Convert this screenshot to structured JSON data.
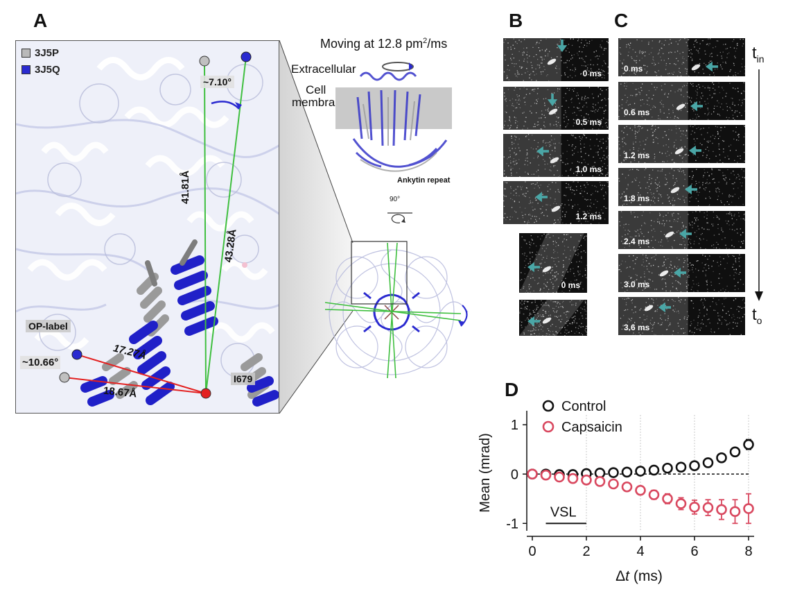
{
  "panels": {
    "a_letter": "A",
    "b_letter": "B",
    "c_letter": "C",
    "d_letter": "D"
  },
  "panel_a": {
    "legend": [
      {
        "label": "3J5P",
        "color": "#b9b9b9"
      },
      {
        "label": "3J5Q",
        "color": "#2a2ad0"
      }
    ],
    "angle_top": "~7.10°",
    "angle_left": "~10.66°",
    "dist_1": "41.81Å",
    "dist_2": "43.28Å",
    "dist_3": "17.27Å",
    "dist_4": "18.67Å",
    "op_label": "OP-label",
    "residue": "I679"
  },
  "structure": {
    "moving_prefix": "Moving at 12.8 pm",
    "moving_sup": "2",
    "moving_suffix": "/ms",
    "extracellular": "Extracellular",
    "cell": "Cell",
    "membrane": "membrane",
    "ankyrin": "Ankytin repeat",
    "rotation": "90°"
  },
  "panel_b": {
    "frames": [
      "0 ms",
      "0.5 ms",
      "1.0 ms",
      "1.2 ms"
    ],
    "extra_frames": [
      "0 ms",
      ""
    ]
  },
  "panel_c": {
    "frames": [
      "0 ms",
      "0.6 ms",
      "1.2 ms",
      "1.8 ms",
      "2.4 ms",
      "3.0 ms",
      "3.6 ms"
    ],
    "t_start": "t",
    "t_start_sub": "in",
    "t_end": "t",
    "t_end_sub": "o"
  },
  "colors": {
    "control": "#111111",
    "capsaicin": "#d9485f",
    "arrow": "#4aa6a6",
    "green": "#3fbf3f",
    "red": "#e32020",
    "blue": "#2a2ad0"
  },
  "chart_data": {
    "type": "scatter",
    "xlabel_prefix": "Δ",
    "xlabel_var": "t",
    "xlabel_unit": " (ms)",
    "ylabel": "Mean (mrad)",
    "xlim": [
      0,
      8
    ],
    "ylim": [
      -1.15,
      1.2
    ],
    "xticks": [
      0,
      2,
      4,
      6,
      8
    ],
    "yticks": [
      1,
      0,
      -1
    ],
    "ytick_labels": [
      "1",
      "0",
      "-1"
    ],
    "annotation": "VSL",
    "annotation_range": [
      0.5,
      2.0
    ],
    "annotation_y": -1.0,
    "vlines": [
      2,
      4,
      6,
      8
    ],
    "hline": 0,
    "legend_position": "top-left",
    "series": [
      {
        "name": "Control",
        "color": "#111111",
        "x": [
          0,
          0.5,
          1.0,
          1.5,
          2.0,
          2.5,
          3.0,
          3.5,
          4.0,
          4.5,
          5.0,
          5.5,
          6.0,
          6.5,
          7.0,
          7.5,
          8.0
        ],
        "y": [
          0.0,
          0.0,
          -0.01,
          -0.01,
          0.01,
          0.02,
          0.03,
          0.04,
          0.06,
          0.08,
          0.12,
          0.14,
          0.17,
          0.23,
          0.33,
          0.45,
          0.6
        ],
        "err": [
          0.02,
          0.02,
          0.02,
          0.02,
          0.02,
          0.02,
          0.02,
          0.02,
          0.03,
          0.03,
          0.03,
          0.04,
          0.05,
          0.05,
          0.06,
          0.08,
          0.1
        ]
      },
      {
        "name": "Capsaicin",
        "color": "#d9485f",
        "x": [
          0,
          0.5,
          1.0,
          1.5,
          2.0,
          2.5,
          3.0,
          3.5,
          4.0,
          4.5,
          5.0,
          5.5,
          6.0,
          6.5,
          7.0,
          7.5,
          8.0
        ],
        "y": [
          0.0,
          -0.02,
          -0.06,
          -0.09,
          -0.12,
          -0.15,
          -0.2,
          -0.26,
          -0.33,
          -0.42,
          -0.5,
          -0.6,
          -0.67,
          -0.68,
          -0.72,
          -0.76,
          -0.7
        ],
        "err": [
          0.02,
          0.02,
          0.03,
          0.03,
          0.03,
          0.04,
          0.05,
          0.06,
          0.07,
          0.09,
          0.1,
          0.12,
          0.14,
          0.16,
          0.2,
          0.24,
          0.3
        ]
      }
    ]
  }
}
